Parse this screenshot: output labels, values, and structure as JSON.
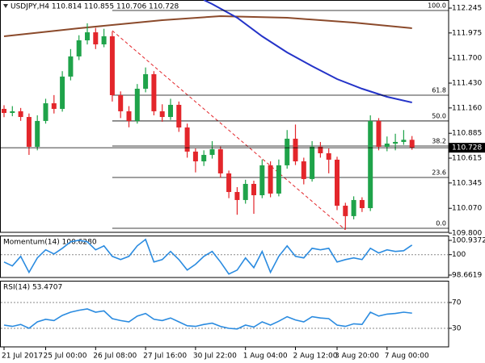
{
  "chart_data": [
    {
      "type": "candlestick",
      "title": "USDJPY,H4 110.814 110.855 110.706 110.728",
      "categories": [
        "21 Jul 2017",
        null,
        null,
        null,
        null,
        "25 Jul 00:00",
        null,
        null,
        null,
        null,
        null,
        "26 Jul 08:00",
        null,
        null,
        null,
        null,
        null,
        "27 Jul 16:00",
        null,
        null,
        null,
        null,
        null,
        "30 Jul 22:00",
        null,
        null,
        null,
        null,
        null,
        "1 Aug 04:00",
        null,
        null,
        null,
        null,
        null,
        "2 Aug 12:00",
        null,
        null,
        null,
        null,
        "3 Aug 20:00",
        null,
        null,
        null,
        null,
        null,
        "7 Aug 00:00",
        null,
        null,
        null
      ],
      "candles": [
        [
          111.15,
          111.19,
          111.06,
          111.106
        ],
        [
          111.106,
          111.18,
          111.07,
          111.124
        ],
        [
          111.124,
          111.16,
          111.02,
          111.062
        ],
        [
          111.062,
          111.1,
          110.65,
          110.738
        ],
        [
          110.738,
          111.08,
          110.7,
          111.019
        ],
        [
          111.019,
          111.26,
          110.99,
          111.211
        ],
        [
          111.211,
          111.3,
          111.1,
          111.15
        ],
        [
          111.15,
          111.56,
          111.12,
          111.501
        ],
        [
          111.501,
          111.8,
          111.46,
          111.72
        ],
        [
          111.72,
          111.95,
          111.68,
          111.895
        ],
        [
          111.895,
          112.08,
          111.85,
          111.982
        ],
        [
          111.982,
          112.03,
          111.8,
          111.851
        ],
        [
          111.851,
          112.02,
          111.82,
          111.939
        ],
        [
          111.939,
          111.99,
          111.23,
          111.299
        ],
        [
          111.299,
          111.34,
          111.05,
          111.124
        ],
        [
          111.124,
          111.18,
          110.95,
          111.019
        ],
        [
          111.019,
          111.42,
          110.99,
          111.369
        ],
        [
          111.369,
          111.6,
          111.33,
          111.527
        ],
        [
          111.527,
          111.56,
          111.08,
          111.124
        ],
        [
          111.124,
          111.2,
          111.01,
          111.062
        ],
        [
          111.062,
          111.26,
          111.03,
          111.194
        ],
        [
          111.194,
          111.23,
          110.9,
          110.948
        ],
        [
          110.948,
          110.99,
          110.62,
          110.686
        ],
        [
          110.686,
          110.72,
          110.46,
          110.58
        ],
        [
          110.58,
          110.7,
          110.53,
          110.65
        ],
        [
          110.65,
          110.8,
          110.61,
          110.712
        ],
        [
          110.712,
          110.74,
          110.4,
          110.449
        ],
        [
          110.449,
          110.48,
          110.18,
          110.247
        ],
        [
          110.247,
          110.3,
          110.0,
          110.16
        ],
        [
          110.16,
          110.38,
          110.12,
          110.335
        ],
        [
          110.335,
          110.37,
          110.01,
          110.212
        ],
        [
          110.212,
          110.6,
          110.18,
          110.537
        ],
        [
          110.537,
          110.58,
          110.19,
          110.23
        ],
        [
          110.23,
          110.6,
          110.2,
          110.537
        ],
        [
          110.537,
          110.92,
          110.5,
          110.826
        ],
        [
          110.826,
          110.98,
          110.54,
          110.58
        ],
        [
          110.58,
          110.62,
          110.33,
          110.388
        ],
        [
          110.388,
          110.8,
          110.36,
          110.738
        ],
        [
          110.738,
          110.79,
          110.62,
          110.668
        ],
        [
          110.668,
          110.72,
          110.45,
          110.598
        ],
        [
          110.598,
          110.63,
          110.05,
          110.098
        ],
        [
          110.098,
          110.13,
          109.84,
          109.985
        ],
        [
          109.985,
          110.2,
          109.95,
          110.16
        ],
        [
          110.16,
          110.19,
          110.03,
          110.072
        ],
        [
          110.072,
          111.08,
          110.04,
          111.019
        ],
        [
          111.019,
          111.05,
          110.7,
          110.738
        ],
        [
          110.738,
          110.85,
          110.69,
          110.773
        ],
        [
          110.773,
          110.88,
          110.7,
          110.791
        ],
        [
          110.791,
          110.92,
          110.76,
          110.814
        ],
        [
          110.814,
          110.855,
          110.706,
          110.728
        ]
      ],
      "up_color": "#1fa34a",
      "down_color": "#e3262b",
      "series": [
        {
          "color": "#8b4a2b",
          "x": [
            0,
            9,
            19,
            26,
            34,
            42,
            49
          ],
          "values": [
            111.939,
            112.026,
            112.114,
            112.158,
            112.14,
            112.088,
            112.026
          ]
        },
        {
          "color": "#2433c8",
          "x": [
            24,
            25,
            28,
            31,
            34,
            37,
            40,
            43,
            46,
            49
          ],
          "values": [
            112.333,
            112.289,
            112.14,
            111.939,
            111.763,
            111.614,
            111.474,
            111.369,
            111.281,
            111.22
          ]
        }
      ],
      "trendline": {
        "color": "#e3262b",
        "x": [
          13,
          41
        ],
        "values": [
          112.0,
          109.836
        ]
      },
      "fib_levels": [
        {
          "label": "100.0",
          "value": 112.219
        },
        {
          "label": "61.8",
          "value": 111.299
        },
        {
          "label": "50.0",
          "value": 111.019
        },
        {
          "label": "38.2",
          "value": 110.747
        },
        {
          "label": "23.6",
          "value": 110.405
        },
        {
          "label": "0.0",
          "value": 109.853
        }
      ],
      "current_price": 110.728,
      "ylim": [
        109.809,
        112.333
      ],
      "yticks": [
        112.245,
        111.975,
        {
          "value": 111.7,
          "label": "111.700"
        },
        {
          "value": 111.43,
          "label": "111.430"
        },
        {
          "value": 111.16,
          "label": "111.160"
        },
        110.885,
        110.615,
        110.345,
        {
          "value": 110.07,
          "label": "110.070"
        },
        {
          "value": 109.8,
          "label": "109.800"
        }
      ]
    },
    {
      "type": "line",
      "title": "Momentum(14) 100.6280",
      "color": "#2a8be0",
      "values": [
        99.52,
        99.26,
        99.89,
        98.84,
        99.79,
        100.32,
        100.05,
        100.42,
        100.85,
        100.95,
        100.85,
        100.32,
        100.58,
        99.89,
        99.68,
        99.89,
        100.58,
        101.0,
        99.52,
        99.68,
        100.21,
        99.68,
        98.99,
        99.37,
        99.89,
        100.21,
        99.52,
        98.73,
        98.99,
        99.79,
        99.15,
        100.21,
        98.84,
        99.89,
        100.58,
        99.89,
        99.79,
        100.42,
        100.32,
        100.42,
        99.52,
        99.68,
        99.79,
        99.68,
        100.42,
        100.11,
        100.32,
        100.21,
        100.26,
        100.628
      ],
      "levels": [
        100
      ],
      "ylim": [
        98.503,
        101.255
      ],
      "yticks": [
        100.9372,
        100,
        98.6619
      ]
    },
    {
      "type": "line",
      "title": "RSI(14) 53.4707",
      "color": "#2a8be0",
      "values": [
        35,
        33,
        36,
        30,
        40,
        44,
        42,
        50,
        55,
        58,
        60,
        55,
        57,
        45,
        42,
        40,
        49,
        53,
        44,
        42,
        46,
        40,
        34,
        33,
        36,
        38,
        33,
        30,
        29,
        35,
        32,
        40,
        35,
        41,
        48,
        43,
        40,
        48,
        46,
        45,
        35,
        33,
        37,
        36,
        55,
        49,
        52,
        53,
        55,
        53.4707
      ],
      "levels": [
        70,
        30
      ],
      "ylim": [
        1.25,
        103.75
      ],
      "yticks": [
        70,
        30
      ]
    }
  ]
}
